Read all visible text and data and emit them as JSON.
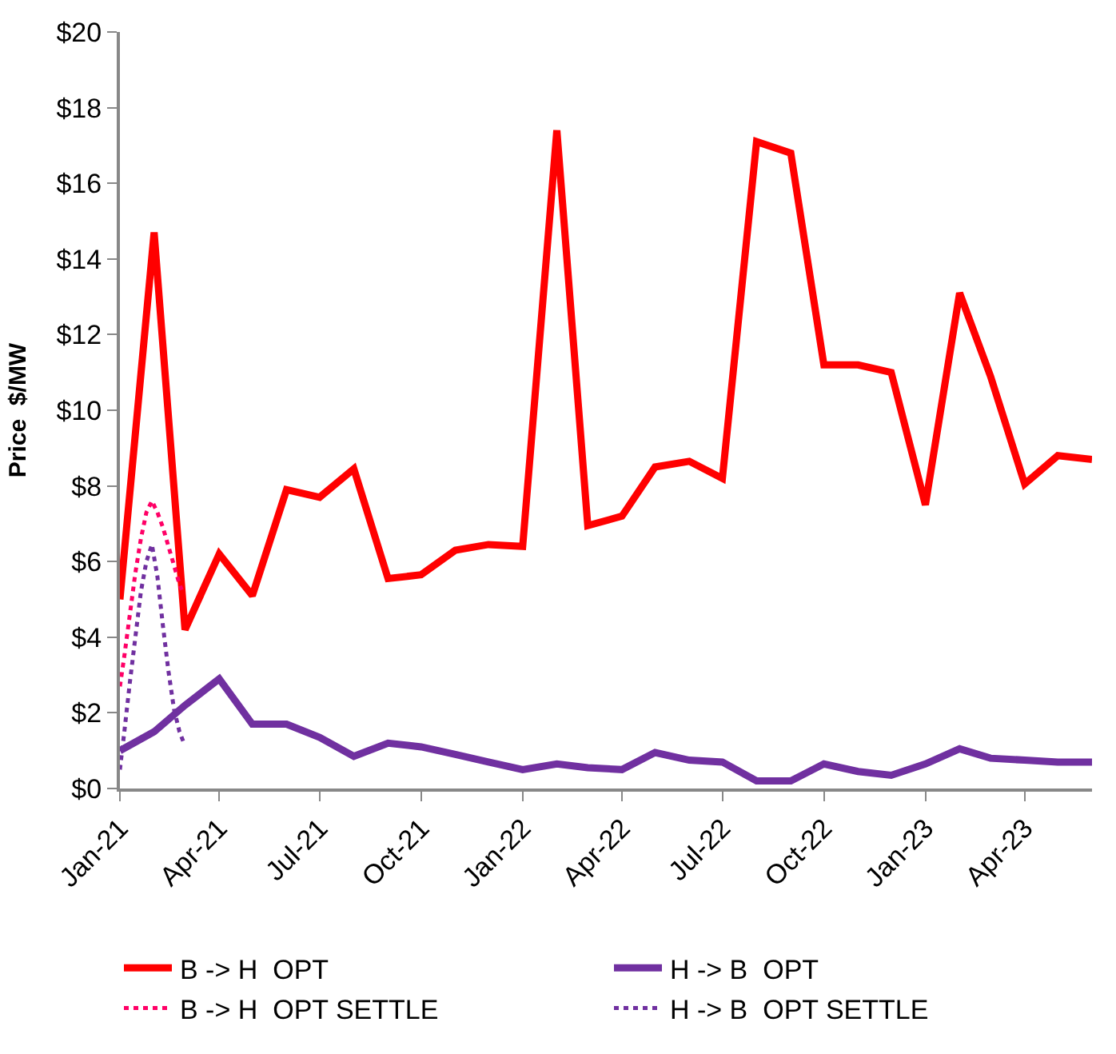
{
  "chart_data": {
    "type": "line",
    "ylabel": "Price  $/MW",
    "x": [
      "2021-01",
      "2021-02",
      "2021-03",
      "2021-04",
      "2021-05",
      "2021-06",
      "2021-07",
      "2021-08",
      "2021-09",
      "2021-10",
      "2021-11",
      "2021-12",
      "2022-01",
      "2022-02",
      "2022-03",
      "2022-04",
      "2022-05",
      "2022-06",
      "2022-07",
      "2022-08",
      "2022-09",
      "2022-10",
      "2022-11",
      "2022-12",
      "2023-01",
      "2023-02",
      "2023-03",
      "2023-04",
      "2023-05",
      "2023-06"
    ],
    "series": [
      {
        "name": "B -> H  OPT",
        "color": "#ff0000",
        "line_style": "solid",
        "values": [
          5.0,
          14.7,
          4.2,
          6.2,
          5.1,
          7.9,
          7.7,
          8.45,
          5.55,
          5.65,
          6.3,
          6.45,
          6.4,
          17.4,
          6.95,
          7.2,
          8.5,
          8.65,
          8.2,
          17.1,
          16.8,
          11.2,
          11.2,
          11.0,
          7.5,
          13.1,
          10.9,
          8.05,
          8.8,
          8.7
        ]
      },
      {
        "name": "H -> B  OPT",
        "color": "#7030a0",
        "line_style": "solid",
        "values": [
          1.0,
          1.5,
          2.2,
          2.9,
          1.7,
          1.7,
          1.35,
          0.85,
          1.2,
          1.1,
          0.9,
          0.7,
          0.5,
          0.65,
          0.55,
          0.5,
          0.95,
          0.75,
          0.7,
          0.2,
          0.2,
          0.65,
          0.45,
          0.35,
          0.65,
          1.05,
          0.8,
          0.75,
          0.7,
          0.7
        ]
      },
      {
        "name": "B -> H  OPT SETTLE",
        "color": "#ff0066",
        "line_style": "dotted",
        "x": [
          "2021-01-01",
          "2021-01-05",
          "2021-01-10",
          "2021-01-15",
          "2021-01-20",
          "2021-01-25",
          "2021-01-30",
          "2021-02-04",
          "2021-02-09",
          "2021-02-14",
          "2021-02-19",
          "2021-02-24",
          "2021-02-26"
        ],
        "values": [
          2.7,
          3.5,
          4.6,
          5.7,
          6.6,
          7.3,
          7.6,
          7.3,
          6.9,
          6.4,
          5.9,
          5.4,
          5.25
        ]
      },
      {
        "name": "H -> B  OPT SETTLE",
        "color": "#7030a0",
        "line_style": "dotted",
        "x": [
          "2021-01-01",
          "2021-01-05",
          "2021-01-10",
          "2021-01-15",
          "2021-01-20",
          "2021-01-25",
          "2021-01-30",
          "2021-02-04",
          "2021-02-09",
          "2021-02-14",
          "2021-02-19",
          "2021-02-24",
          "2021-02-28"
        ],
        "values": [
          0.5,
          1.5,
          2.8,
          4.0,
          5.2,
          6.0,
          6.45,
          5.6,
          4.3,
          3.1,
          2.1,
          1.5,
          1.2
        ]
      }
    ],
    "xlim": [
      "2021-01-01",
      "2023-06-01"
    ],
    "xticks": [
      {
        "value": "2021-01-01",
        "label": "Jan-21"
      },
      {
        "value": "2021-04-01",
        "label": "Apr-21"
      },
      {
        "value": "2021-07-01",
        "label": "Jul-21"
      },
      {
        "value": "2021-10-01",
        "label": "Oct-21"
      },
      {
        "value": "2022-01-01",
        "label": "Jan-22"
      },
      {
        "value": "2022-04-01",
        "label": "Apr-22"
      },
      {
        "value": "2022-07-01",
        "label": "Jul-22"
      },
      {
        "value": "2022-10-01",
        "label": "Oct-22"
      },
      {
        "value": "2023-01-01",
        "label": "Jan-23"
      },
      {
        "value": "2023-04-01",
        "label": "Apr-23"
      }
    ],
    "ylim": [
      0,
      20
    ],
    "yticks": [
      {
        "value": 0,
        "label": "$0"
      },
      {
        "value": 2,
        "label": "$2"
      },
      {
        "value": 4,
        "label": "$4"
      },
      {
        "value": 6,
        "label": "$6"
      },
      {
        "value": 8,
        "label": "$8"
      },
      {
        "value": 10,
        "label": "$10"
      },
      {
        "value": 12,
        "label": "$12"
      },
      {
        "value": 14,
        "label": "$14"
      },
      {
        "value": 16,
        "label": "$16"
      },
      {
        "value": 18,
        "label": "$18"
      },
      {
        "value": 20,
        "label": "$20"
      }
    ],
    "legend": "bottom",
    "marker": "none"
  }
}
